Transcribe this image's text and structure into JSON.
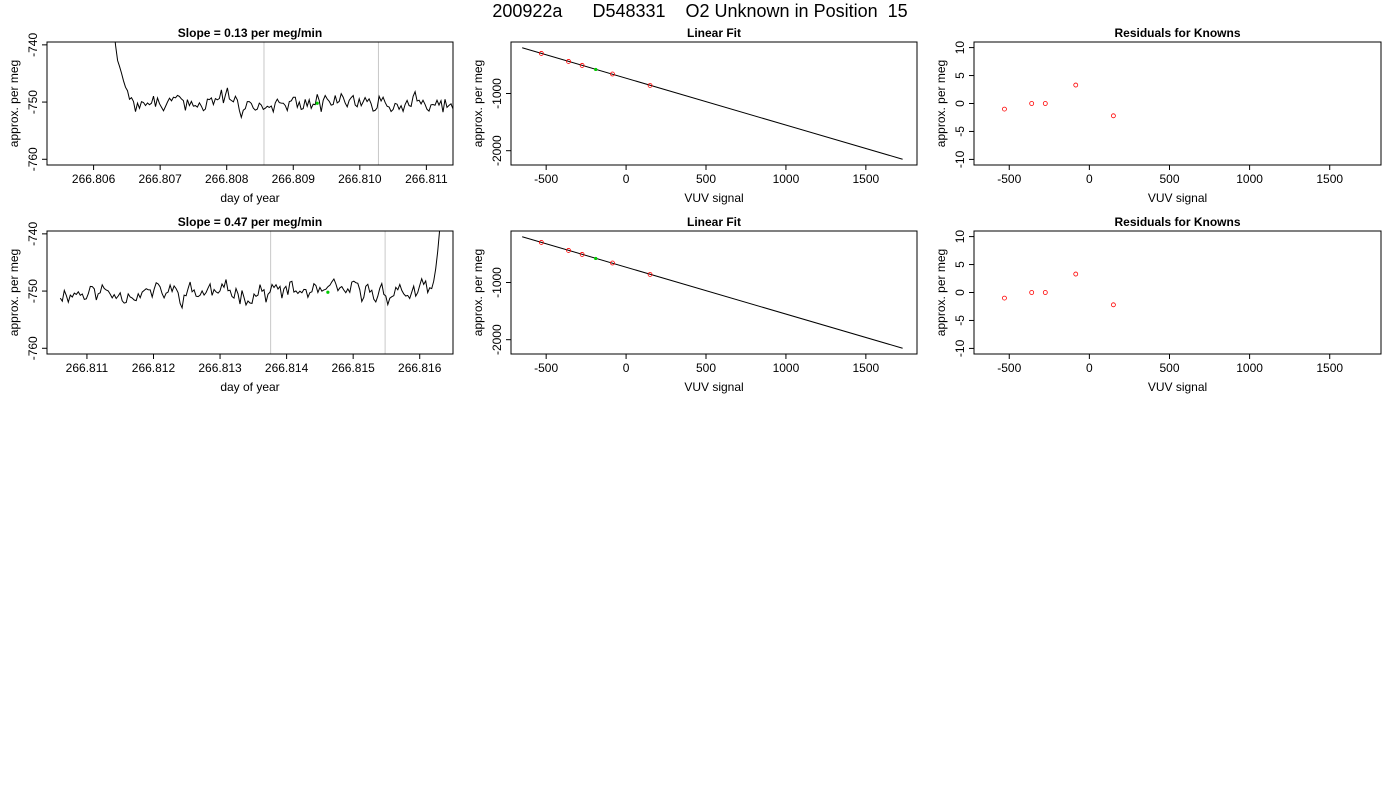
{
  "page": {
    "title": "200922a      D548331    O2 Unknown in Position  15"
  },
  "colors": {
    "axis": "#000000",
    "trace": "#000000",
    "marker_vline": "#c8c8c8",
    "known_points": "#ff0000",
    "unknown_point": "#00cc00"
  },
  "chart_data": [
    {
      "id": "ts1",
      "type": "line",
      "title": "Slope =  0.13  per meg/min",
      "xlabel": "day of year",
      "ylabel": "approx. per meg",
      "xlim": [
        266.8053,
        266.8114
      ],
      "ylim": [
        -761,
        -739.5
      ],
      "xticks": [
        266.806,
        266.807,
        266.808,
        266.809,
        266.81,
        266.811
      ],
      "xtick_labels": [
        "266.806",
        "266.807",
        "266.808",
        "266.809",
        "266.810",
        "266.811"
      ],
      "yticks": [
        -740,
        -750,
        -760
      ],
      "ytick_labels": [
        "-740",
        "-750",
        "-760"
      ],
      "vlines": [
        266.80856,
        266.81028
      ],
      "trace_start": 266.8063,
      "trace_end": 266.8114,
      "trace_step": 3e-05,
      "trace_mean": -750.2,
      "trace_amplitude": 1.6,
      "trace_seed": 7,
      "transient": {
        "from": -737,
        "to": -749.5,
        "end": 266.80655
      },
      "highlight": {
        "x": 266.80936,
        "y": -750.2
      }
    },
    {
      "id": "fit1",
      "type": "scatter",
      "title": "Linear Fit",
      "xlabel": "VUV signal",
      "ylabel": "approx. per meg",
      "xlim": [
        -720,
        1820
      ],
      "ylim": [
        -2250,
        -100
      ],
      "xticks": [
        -500,
        0,
        500,
        1000,
        1500
      ],
      "xtick_labels": [
        "-500",
        "0",
        "500",
        "1000",
        "1500"
      ],
      "yticks": [
        -1000,
        -2000
      ],
      "ytick_labels": [
        "-1000",
        "-2000"
      ],
      "line": {
        "x0": -650,
        "y0": -200,
        "x1": 1730,
        "y1": -2150
      },
      "known_points": [
        {
          "x": -530,
          "y": -300
        },
        {
          "x": -360,
          "y": -440
        },
        {
          "x": -275,
          "y": -510
        },
        {
          "x": -85,
          "y": -660
        },
        {
          "x": 150,
          "y": -860
        }
      ],
      "unknown_point": {
        "x": -190,
        "y": -580
      }
    },
    {
      "id": "res1",
      "type": "scatter",
      "title": "Residuals for Knowns",
      "xlabel": "VUV signal",
      "ylabel": "approx. per meg",
      "xlim": [
        -720,
        1820
      ],
      "ylim": [
        -11,
        11
      ],
      "xticks": [
        -500,
        0,
        500,
        1000,
        1500
      ],
      "xtick_labels": [
        "-500",
        "0",
        "500",
        "1000",
        "1500"
      ],
      "yticks": [
        10,
        5,
        0,
        -5,
        -10
      ],
      "ytick_labels": [
        "10",
        "5",
        "0",
        "-5",
        "-10"
      ],
      "points": [
        {
          "x": -530,
          "y": -1
        },
        {
          "x": -360,
          "y": 0
        },
        {
          "x": -275,
          "y": 0
        },
        {
          "x": -85,
          "y": 3.3
        },
        {
          "x": 150,
          "y": -2.2
        }
      ]
    },
    {
      "id": "ts2",
      "type": "line",
      "title": "Slope =  0.47  per meg/min",
      "xlabel": "day of year",
      "ylabel": "approx. per meg",
      "xlim": [
        266.8104,
        266.8165
      ],
      "ylim": [
        -761,
        -739.5
      ],
      "xticks": [
        266.811,
        266.812,
        266.813,
        266.814,
        266.815,
        266.816
      ],
      "xtick_labels": [
        "266.811",
        "266.812",
        "266.813",
        "266.814",
        "266.815",
        "266.816"
      ],
      "yticks": [
        -740,
        -750,
        -760
      ],
      "ytick_labels": [
        "-740",
        "-750",
        "-760"
      ],
      "vlines": [
        266.81376,
        266.81548
      ],
      "trace_start": 266.8106,
      "trace_end": 266.81635,
      "trace_step": 3e-05,
      "trace_mean": -750.2,
      "trace_amplitude": 1.6,
      "trace_seed": 11,
      "rise": {
        "start": 266.81615,
        "to": -738
      },
      "highlight": {
        "x": 266.81462,
        "y": -750.2
      }
    },
    {
      "id": "fit2",
      "type": "scatter",
      "title": "Linear Fit",
      "xlabel": "VUV signal",
      "ylabel": "approx. per meg",
      "xlim": [
        -720,
        1820
      ],
      "ylim": [
        -2250,
        -100
      ],
      "xticks": [
        -500,
        0,
        500,
        1000,
        1500
      ],
      "xtick_labels": [
        "-500",
        "0",
        "500",
        "1000",
        "1500"
      ],
      "yticks": [
        -1000,
        -2000
      ],
      "ytick_labels": [
        "-1000",
        "-2000"
      ],
      "line": {
        "x0": -650,
        "y0": -200,
        "x1": 1730,
        "y1": -2150
      },
      "known_points": [
        {
          "x": -530,
          "y": -300
        },
        {
          "x": -360,
          "y": -440
        },
        {
          "x": -275,
          "y": -510
        },
        {
          "x": -85,
          "y": -660
        },
        {
          "x": 150,
          "y": -860
        }
      ],
      "unknown_point": {
        "x": -190,
        "y": -580
      }
    },
    {
      "id": "res2",
      "type": "scatter",
      "title": "Residuals for Knowns",
      "xlabel": "VUV signal",
      "ylabel": "approx. per meg",
      "xlim": [
        -720,
        1820
      ],
      "ylim": [
        -11,
        11
      ],
      "xticks": [
        -500,
        0,
        500,
        1000,
        1500
      ],
      "xtick_labels": [
        "-500",
        "0",
        "500",
        "1000",
        "1500"
      ],
      "yticks": [
        10,
        5,
        0,
        -5,
        -10
      ],
      "ytick_labels": [
        "10",
        "5",
        "0",
        "-5",
        "-10"
      ],
      "points": [
        {
          "x": -530,
          "y": -1
        },
        {
          "x": -360,
          "y": 0
        },
        {
          "x": -275,
          "y": 0
        },
        {
          "x": -85,
          "y": 3.3
        },
        {
          "x": 150,
          "y": -2.2
        }
      ]
    }
  ]
}
